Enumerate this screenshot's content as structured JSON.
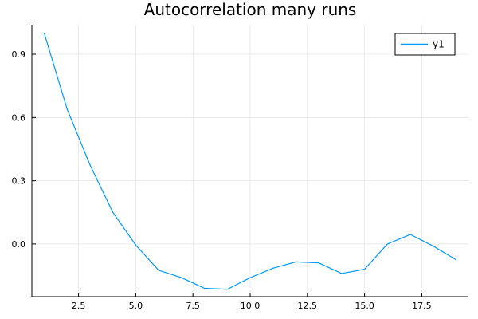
{
  "chart_data": {
    "type": "line",
    "title": "Autocorrelation many runs",
    "xlabel": "",
    "ylabel": "",
    "xlim": [
      0.46,
      19.54
    ],
    "ylim": [
      -0.25,
      1.04
    ],
    "x_ticks": [
      2.5,
      5.0,
      7.5,
      10.0,
      12.5,
      15.0,
      17.5
    ],
    "x_tick_labels": [
      "2.5",
      "5.0",
      "7.5",
      "10.0",
      "12.5",
      "15.0",
      "17.5"
    ],
    "y_ticks": [
      0.0,
      0.3,
      0.6,
      0.9
    ],
    "y_tick_labels": [
      "0.0",
      "0.3",
      "0.6",
      "0.9"
    ],
    "grid": true,
    "legend": "top-right",
    "series": [
      {
        "name": "y1",
        "color": "#009AFA",
        "x": [
          1,
          2,
          3,
          4,
          5,
          6,
          7,
          8,
          9,
          10,
          11,
          12,
          13,
          14,
          15,
          16,
          17,
          18,
          19
        ],
        "values": [
          1.0,
          0.64,
          0.375,
          0.15,
          -0.005,
          -0.125,
          -0.16,
          -0.21,
          -0.215,
          -0.16,
          -0.115,
          -0.085,
          -0.09,
          -0.14,
          -0.12,
          0.0,
          0.045,
          -0.01,
          -0.075
        ]
      }
    ]
  }
}
